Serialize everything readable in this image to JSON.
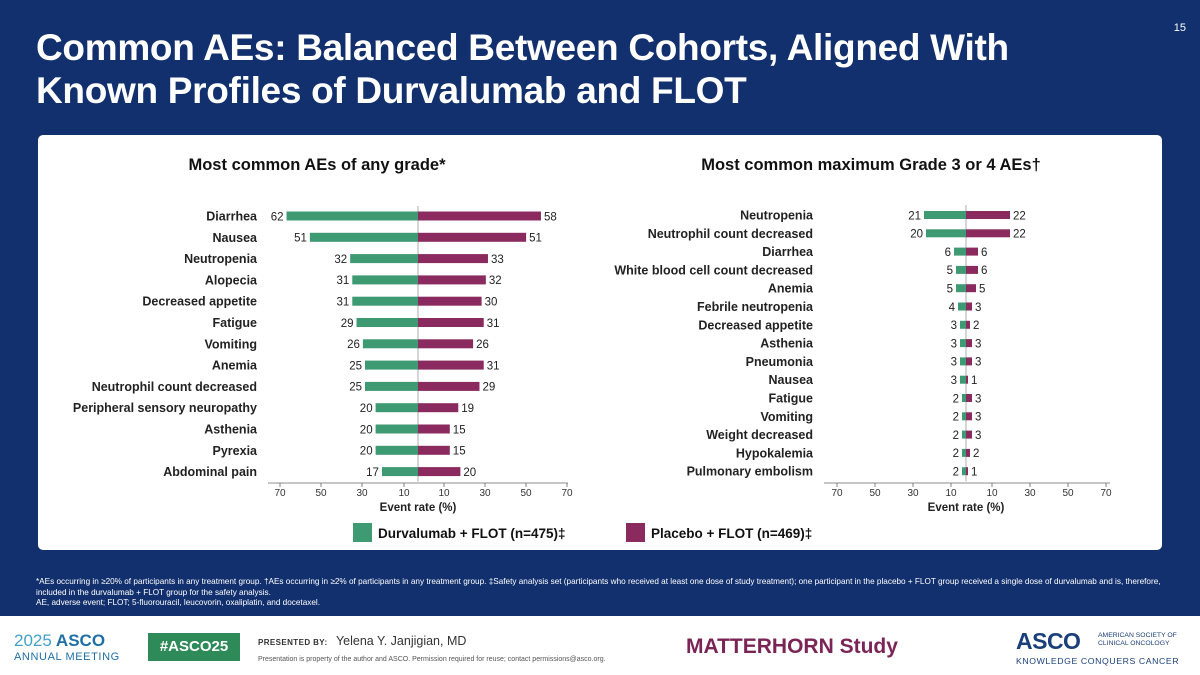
{
  "slide_number": "15",
  "title": "Common AEs: Balanced Between Cohorts, Aligned With Known Profiles of Durvalumab and FLOT",
  "colors": {
    "durvalumab": "#3d9a73",
    "placebo": "#8a2a5e",
    "background": "#12306e"
  },
  "chart_data": [
    {
      "type": "bar",
      "orientation": "horizontal-butterfly",
      "title": "Most common AEs of any grade*",
      "xlabel": "Event rate (%)",
      "xlim": [
        -70,
        70
      ],
      "tick_labels": [
        "70",
        "50",
        "30",
        "10",
        "10",
        "30",
        "50",
        "70"
      ],
      "categories": [
        "Diarrhea",
        "Nausea",
        "Neutropenia",
        "Alopecia",
        "Decreased appetite",
        "Fatigue",
        "Vomiting",
        "Anemia",
        "Neutrophil count decreased",
        "Peripheral sensory neuropathy",
        "Asthenia",
        "Pyrexia",
        "Abdominal pain"
      ],
      "series": [
        {
          "name": "Durvalumab + FLOT (n=475)‡",
          "side": "left",
          "values": [
            62,
            51,
            32,
            31,
            31,
            29,
            26,
            25,
            25,
            20,
            20,
            20,
            17
          ]
        },
        {
          "name": "Placebo + FLOT (n=469)‡",
          "side": "right",
          "values": [
            58,
            51,
            33,
            32,
            30,
            31,
            26,
            31,
            29,
            19,
            15,
            15,
            20
          ]
        }
      ]
    },
    {
      "type": "bar",
      "orientation": "horizontal-butterfly",
      "title": "Most common maximum Grade 3 or 4 AEs†",
      "xlabel": "Event rate (%)",
      "xlim": [
        -70,
        70
      ],
      "tick_labels": [
        "70",
        "50",
        "30",
        "10",
        "10",
        "30",
        "50",
        "70"
      ],
      "categories": [
        "Neutropenia",
        "Neutrophil count decreased",
        "Diarrhea",
        "White blood cell count decreased",
        "Anemia",
        "Febrile neutropenia",
        "Decreased appetite",
        "Asthenia",
        "Pneumonia",
        "Nausea",
        "Fatigue",
        "Vomiting",
        "Weight decreased",
        "Hypokalemia",
        "Pulmonary embolism"
      ],
      "series": [
        {
          "name": "Durvalumab + FLOT (n=475)‡",
          "side": "left",
          "values": [
            21,
            20,
            6,
            5,
            5,
            4,
            3,
            3,
            3,
            3,
            2,
            2,
            2,
            2,
            2
          ]
        },
        {
          "name": "Placebo + FLOT (n=469)‡",
          "side": "right",
          "values": [
            22,
            22,
            6,
            6,
            5,
            3,
            2,
            3,
            3,
            1,
            3,
            3,
            3,
            2,
            1
          ]
        }
      ]
    }
  ],
  "legend": {
    "durvalumab_label": "Durvalumab + FLOT (n=475)‡",
    "placebo_label": "Placebo + FLOT (n=469)‡"
  },
  "footnotes": {
    "line1": "*AEs occurring in ≥20% of participants in any treatment group. †AEs occurring in ≥2% of participants in any treatment group. ‡Safety analysis set (participants who received at least one dose of study treatment); one participant in the placebo + FLOT group received a single dose of durvalumab and is, therefore, included in the durvalumab + FLOT group for the safety analysis.",
    "line2": "AE, adverse event; FLOT; 5-fluorouracil, leucovorin, oxaliplatin, and docetaxel."
  },
  "footer": {
    "meeting_year": "2025",
    "meeting_org": "ASCO",
    "meeting_sub": "ANNUAL MEETING",
    "hashtag": "#ASCO25",
    "presented_by_label": "PRESENTED BY:",
    "presenter": "Yelena Y. Janjigian, MD",
    "permission": "Presentation is property of the author and ASCO. Permission required for reuse; contact permissions@asco.org.",
    "study_name": "MATTERHORN Study",
    "logo_word": "ASCO",
    "logo_society": "AMERICAN SOCIETY OF CLINICAL ONCOLOGY",
    "logo_tagline": "KNOWLEDGE CONQUERS CANCER"
  }
}
